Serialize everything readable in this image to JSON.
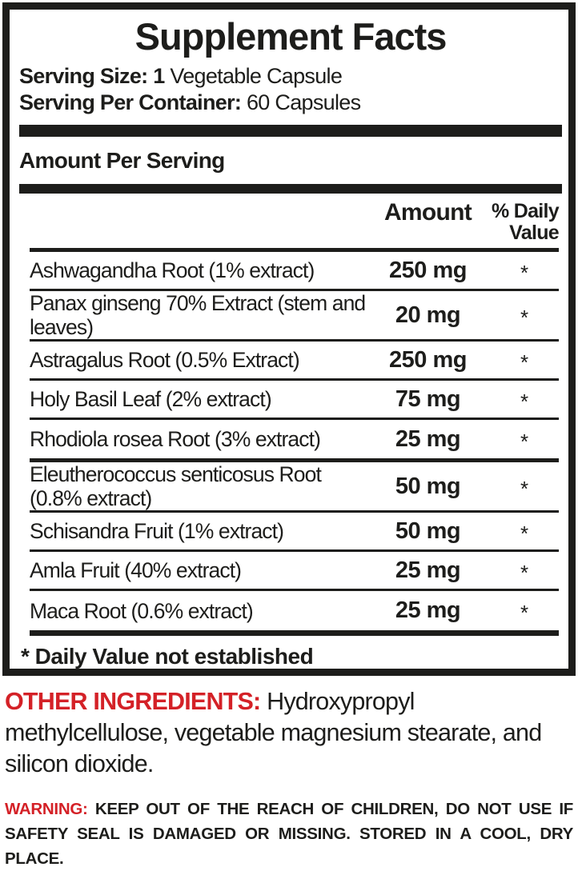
{
  "panel": {
    "title": "Supplement Facts",
    "serving_size_label": "Serving Size: 1",
    "serving_size_value": " Vegetable Capsule",
    "servings_label": "Serving Per Container:",
    "servings_value": " 60 Capsules",
    "section_header": "Amount Per Serving",
    "columns": {
      "amount": "Amount",
      "daily_value": "% Daily Value"
    },
    "rows": [
      {
        "name": "Ashwagandha Root (1% extract)",
        "amount": "250 mg",
        "dv": "*",
        "group_end": false
      },
      {
        "name": "Panax ginseng 70% Extract (stem and leaves)",
        "amount": "20 mg",
        "dv": "*",
        "group_end": false
      },
      {
        "name": "Astragalus Root (0.5% Extract)",
        "amount": "250 mg",
        "dv": "*",
        "group_end": false
      },
      {
        "name": "Holy Basil Leaf (2% extract)",
        "amount": "75 mg",
        "dv": "*",
        "group_end": false
      },
      {
        "name": "Rhodiola rosea Root (3% extract)",
        "amount": "25 mg",
        "dv": "*",
        "group_end": true
      },
      {
        "name": "Eleutherococcus senticosus Root (0.8% extract)",
        "amount": "50 mg",
        "dv": "*",
        "group_end": false
      },
      {
        "name": "Schisandra Fruit (1% extract)",
        "amount": "50 mg",
        "dv": "*",
        "group_end": false
      },
      {
        "name": "Amla Fruit (40% extract)",
        "amount": "25 mg",
        "dv": "*",
        "group_end": false
      },
      {
        "name": "Maca Root (0.6% extract)",
        "amount": "25 mg",
        "dv": "*",
        "group_end": false
      }
    ],
    "footnote": "* Daily Value not established"
  },
  "other_ingredients": {
    "label": "OTHER INGREDIENTS:",
    "text": " Hydroxypropyl methylcellulose, vegetable magnesium stearate, and silicon dioxide."
  },
  "warning": {
    "label": "WARNING:",
    "text": " KEEP OUT OF THE REACH OF CHILDREN, DO NOT USE IF SAFETY SEAL IS DAMAGED OR MISSING. STORED IN A COOL, DRY PLACE."
  },
  "colors": {
    "ink": "#1d1d1b",
    "accent_red": "#d42127"
  }
}
